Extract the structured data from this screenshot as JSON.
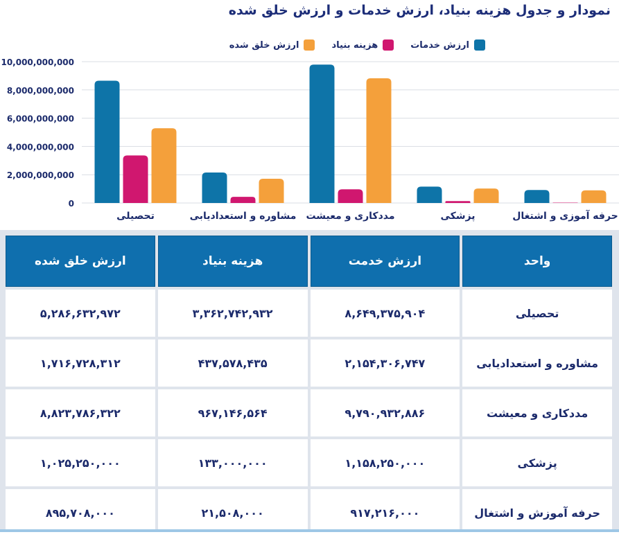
{
  "title": "نمودار و جدول هزینه بنیاد، ارزش خدمات و ارزش خلق شده",
  "legend": [
    {
      "label": "ارزش خدمات",
      "color": "#0e74a8"
    },
    {
      "label": "هزینه بنیاد",
      "color": "#d0176f"
    },
    {
      "label": "ارزش خلق شده",
      "color": "#f4a03b"
    }
  ],
  "chart_data": {
    "type": "bar",
    "categories": [
      "تحصیلی",
      "مشاوره و استعدادیابی",
      "مددکاری و معیشت",
      "پزشکی",
      "حرفه آموزی و اشتغال"
    ],
    "series": [
      {
        "name": "ارزش خدمات",
        "color": "#0e74a8",
        "values": [
          8649375904,
          2154306747,
          9790932886,
          1158250000,
          917216000
        ]
      },
      {
        "name": "هزینه بنیاد",
        "color": "#d0176f",
        "values": [
          3362742932,
          437578435,
          967146564,
          133000000,
          21508000
        ]
      },
      {
        "name": "ارزش خلق شده",
        "color": "#f4a03b",
        "values": [
          5286632972,
          1716728312,
          8823786322,
          1025250000,
          895708000
        ]
      }
    ],
    "ylim": [
      0,
      10000000000
    ],
    "yticks": [
      "0",
      "2,000,000,000",
      "4,000,000,000",
      "6,000,000,000",
      "8,000,000,000",
      "10,000,000,000"
    ],
    "grid": true
  },
  "table": {
    "headers": [
      "واحد",
      "ارزش خدمت",
      "هزینه بنیاد",
      "ارزش خلق شده"
    ],
    "rows": [
      [
        "تحصیلی",
        "۸,۶۴۹,۳۷۵,۹۰۴",
        "۳,۳۶۲,۷۴۲,۹۳۲",
        "۵,۲۸۶,۶۳۲,۹۷۲"
      ],
      [
        "مشاوره و استعدادیابی",
        "۲,۱۵۴,۳۰۶,۷۴۷",
        "۴۳۷,۵۷۸,۴۳۵",
        "۱,۷۱۶,۷۲۸,۳۱۲"
      ],
      [
        "مددکاری و معیشت",
        "۹,۷۹۰,۹۳۲,۸۸۶",
        "۹۶۷,۱۴۶,۵۶۴",
        "۸,۸۲۳,۷۸۶,۳۲۲"
      ],
      [
        "پزشکی",
        "۱,۱۵۸,۲۵۰,۰۰۰",
        "۱۳۳,۰۰۰,۰۰۰",
        "۱,۰۲۵,۲۵۰,۰۰۰"
      ],
      [
        "حرفه آموزش و اشتغال",
        "۹۱۷,۲۱۶,۰۰۰",
        "۲۱,۵۰۸,۰۰۰",
        "۸۹۵,۷۰۸,۰۰۰"
      ]
    ]
  }
}
